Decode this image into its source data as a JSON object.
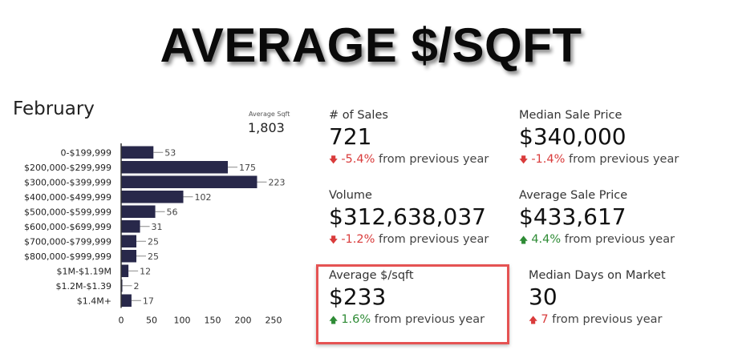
{
  "title": "AVERAGE $/SQFT",
  "month": "February",
  "average_sqft_label": "Average Sqft",
  "average_sqft_value": "1,803",
  "colors": {
    "bar": "#28284a",
    "down": "#d93b3b",
    "up": "#2e8b35",
    "highlight": "#e55353"
  },
  "chart_data": {
    "type": "bar",
    "orientation": "horizontal",
    "categories": [
      "0-$199,999",
      "$200,000-$299,999",
      "$300,000-$399,999",
      "$400,000-$499,999",
      "$500,000-$599,999",
      "$600,000-$699,999",
      "$700,000-$799,999",
      "$800,000-$999,999",
      "$1M-$1.19M",
      "$1.2M-$1.39",
      "$1.4M+"
    ],
    "values": [
      53,
      175,
      223,
      102,
      56,
      31,
      25,
      25,
      12,
      2,
      17
    ],
    "xticks": [
      "0",
      "50",
      "100",
      "150",
      "200",
      "250"
    ],
    "xlim": [
      0,
      250
    ],
    "grid": false
  },
  "stats": {
    "sales": {
      "label": "# of Sales",
      "value": "721",
      "change": "-5.4%",
      "direction": "down",
      "suffix": "from previous year"
    },
    "median_price": {
      "label": "Median Sale Price",
      "value": "$340,000",
      "change": "-1.4%",
      "direction": "down",
      "suffix": "from previous year"
    },
    "volume": {
      "label": "Volume",
      "value": "$312,638,037",
      "change": "-1.2%",
      "direction": "down",
      "suffix": "from previous year"
    },
    "avg_price": {
      "label": "Average Sale Price",
      "value": "$433,617",
      "change": "4.4%",
      "direction": "up",
      "suffix": "from previous year"
    },
    "avg_sqft": {
      "label": "Average $/sqft",
      "value": "$233",
      "change": "1.6%",
      "direction": "up",
      "suffix": "from previous year"
    },
    "median_days": {
      "label": "Median Days on Market",
      "value": "30",
      "change": "7",
      "direction": "up",
      "suffix": "from previous year"
    }
  }
}
